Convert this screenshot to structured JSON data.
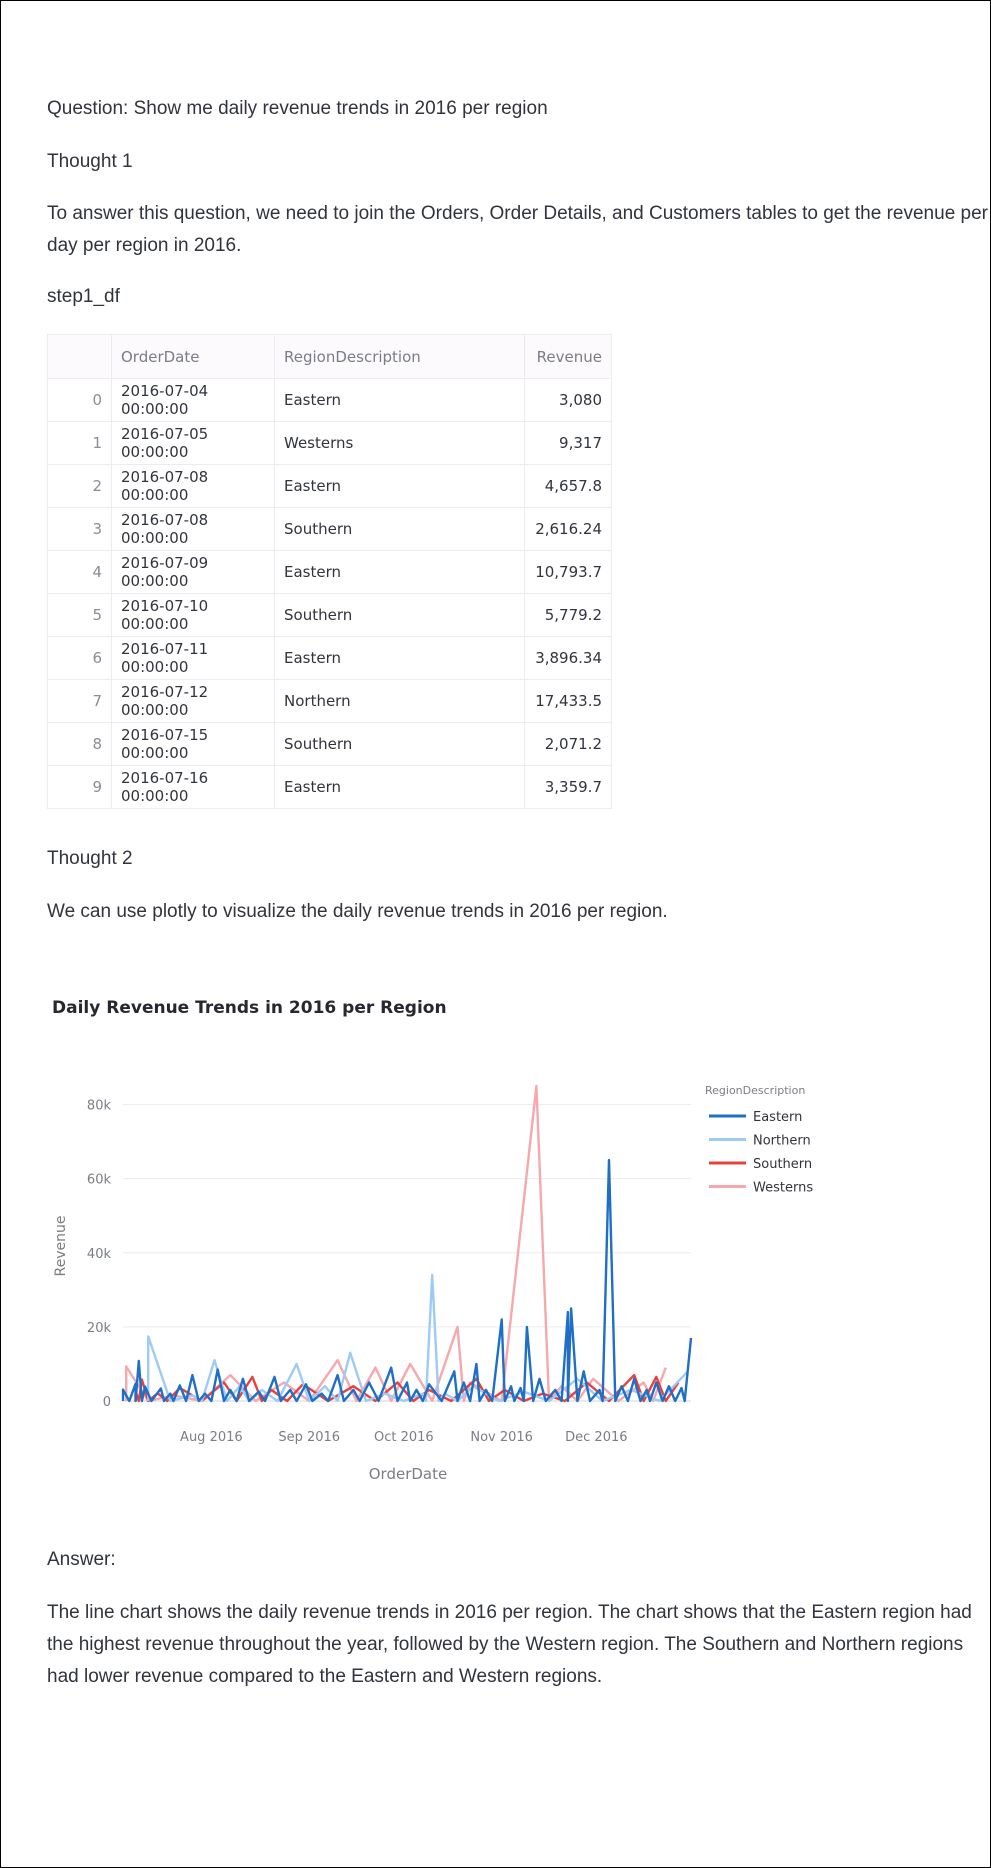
{
  "question": "Question: Show me daily revenue trends in 2016 per region",
  "thought1": {
    "title": "Thought 1",
    "text": "To answer this question, we need to join the Orders, Order Details, and Customers tables to get the revenue per day per region in 2016."
  },
  "dataframe": {
    "name": "step1_df",
    "columns": [
      "",
      "OrderDate",
      "RegionDescription",
      "Revenue"
    ],
    "rows": [
      {
        "idx": "0",
        "date": "2016-07-04 00:00:00",
        "region": "Eastern",
        "revenue": "3,080"
      },
      {
        "idx": "1",
        "date": "2016-07-05 00:00:00",
        "region": "Westerns",
        "revenue": "9,317"
      },
      {
        "idx": "2",
        "date": "2016-07-08 00:00:00",
        "region": "Eastern",
        "revenue": "4,657.8"
      },
      {
        "idx": "3",
        "date": "2016-07-08 00:00:00",
        "region": "Southern",
        "revenue": "2,616.24"
      },
      {
        "idx": "4",
        "date": "2016-07-09 00:00:00",
        "region": "Eastern",
        "revenue": "10,793.7"
      },
      {
        "idx": "5",
        "date": "2016-07-10 00:00:00",
        "region": "Southern",
        "revenue": "5,779.2"
      },
      {
        "idx": "6",
        "date": "2016-07-11 00:00:00",
        "region": "Eastern",
        "revenue": "3,896.34"
      },
      {
        "idx": "7",
        "date": "2016-07-12 00:00:00",
        "region": "Northern",
        "revenue": "17,433.5"
      },
      {
        "idx": "8",
        "date": "2016-07-15 00:00:00",
        "region": "Southern",
        "revenue": "2,071.2"
      },
      {
        "idx": "9",
        "date": "2016-07-16 00:00:00",
        "region": "Eastern",
        "revenue": "3,359.7"
      }
    ]
  },
  "thought2": {
    "title": "Thought 2",
    "text": "We can use plotly to visualize the daily revenue trends in 2016 per region."
  },
  "chart_data": {
    "type": "line",
    "title": "Daily Revenue Trends in 2016 per Region",
    "xlabel": "OrderDate",
    "ylabel": "Revenue",
    "xlim": [
      "2016-07-04",
      "2016-12-31"
    ],
    "ylim": [
      0,
      85000
    ],
    "x_ticks": [
      "Aug 2016",
      "Sep 2016",
      "Oct 2016",
      "Nov 2016",
      "Dec 2016"
    ],
    "y_ticks": [
      "0",
      "20k",
      "40k",
      "60k",
      "80k"
    ],
    "y_tick_values": [
      0,
      20000,
      40000,
      60000,
      80000
    ],
    "grid": true,
    "legend_title": "RegionDescription",
    "legend_position": "right",
    "series": [
      {
        "name": "Eastern",
        "color": "#1f6fc6",
        "points": [
          [
            "2016-07-04",
            3080
          ],
          [
            "2016-07-08",
            4658
          ],
          [
            "2016-07-09",
            10794
          ],
          [
            "2016-07-11",
            3896
          ],
          [
            "2016-07-16",
            3360
          ],
          [
            "2016-07-19",
            2000
          ],
          [
            "2016-07-22",
            4200
          ],
          [
            "2016-07-26",
            7000
          ],
          [
            "2016-07-30",
            2000
          ],
          [
            "2016-08-03",
            8500
          ],
          [
            "2016-08-07",
            3000
          ],
          [
            "2016-08-11",
            6000
          ],
          [
            "2016-08-16",
            2500
          ],
          [
            "2016-08-21",
            6500
          ],
          [
            "2016-08-26",
            3000
          ],
          [
            "2016-08-31",
            4500
          ],
          [
            "2016-09-05",
            2000
          ],
          [
            "2016-09-10",
            7000
          ],
          [
            "2016-09-15",
            3000
          ],
          [
            "2016-09-20",
            5000
          ],
          [
            "2016-09-27",
            9000
          ],
          [
            "2016-10-02",
            5000
          ],
          [
            "2016-10-05",
            3000
          ],
          [
            "2016-10-09",
            4500
          ],
          [
            "2016-10-17",
            8000
          ],
          [
            "2016-10-20",
            5000
          ],
          [
            "2016-10-24",
            10000
          ],
          [
            "2016-10-27",
            3000
          ],
          [
            "2016-11-01",
            22000
          ],
          [
            "2016-11-04",
            4000
          ],
          [
            "2016-11-07",
            3500
          ],
          [
            "2016-11-09",
            20000
          ],
          [
            "2016-11-13",
            6000
          ],
          [
            "2016-11-18",
            3000
          ],
          [
            "2016-11-22",
            24000
          ],
          [
            "2016-11-23",
            25000
          ],
          [
            "2016-11-27",
            8000
          ],
          [
            "2016-12-02",
            3000
          ],
          [
            "2016-12-05",
            65000
          ],
          [
            "2016-12-09",
            4000
          ],
          [
            "2016-12-13",
            6000
          ],
          [
            "2016-12-17",
            3000
          ],
          [
            "2016-12-20",
            5000
          ],
          [
            "2016-12-24",
            4000
          ],
          [
            "2016-12-28",
            3500
          ],
          [
            "2016-12-31",
            17000
          ]
        ]
      },
      {
        "name": "Northern",
        "color": "#9ecbf5",
        "points": [
          [
            "2016-07-12",
            17434
          ],
          [
            "2016-07-26",
            1500
          ],
          [
            "2016-08-02",
            11000
          ],
          [
            "2016-08-10",
            4000
          ],
          [
            "2016-08-17",
            3000
          ],
          [
            "2016-08-28",
            10000
          ],
          [
            "2016-09-06",
            4000
          ],
          [
            "2016-09-14",
            13000
          ],
          [
            "2016-09-25",
            2000
          ],
          [
            "2016-10-07",
            2000
          ],
          [
            "2016-10-10",
            34000
          ],
          [
            "2016-10-14",
            2000
          ],
          [
            "2016-10-23",
            4000
          ],
          [
            "2016-11-08",
            2500
          ],
          [
            "2016-11-25",
            6000
          ],
          [
            "2016-12-12",
            3000
          ],
          [
            "2016-12-30",
            8000
          ]
        ]
      },
      {
        "name": "Southern",
        "color": "#e8413c",
        "points": [
          [
            "2016-07-08",
            2616
          ],
          [
            "2016-07-10",
            5779
          ],
          [
            "2016-07-15",
            2071
          ],
          [
            "2016-07-22",
            3500
          ],
          [
            "2016-08-05",
            5000
          ],
          [
            "2016-08-14",
            6500
          ],
          [
            "2016-08-20",
            3000
          ],
          [
            "2016-08-30",
            4500
          ],
          [
            "2016-09-15",
            4000
          ],
          [
            "2016-09-29",
            5000
          ],
          [
            "2016-10-09",
            3000
          ],
          [
            "2016-10-24",
            6000
          ],
          [
            "2016-11-02",
            3000
          ],
          [
            "2016-11-14",
            2000
          ],
          [
            "2016-11-28",
            5000
          ],
          [
            "2016-12-13",
            7000
          ],
          [
            "2016-12-20",
            6500
          ],
          [
            "2016-12-27",
            5000
          ]
        ]
      },
      {
        "name": "Westerns",
        "color": "#f6a8ad",
        "points": [
          [
            "2016-07-05",
            9317
          ],
          [
            "2016-07-20",
            1500
          ],
          [
            "2016-08-07",
            7000
          ],
          [
            "2016-08-24",
            5000
          ],
          [
            "2016-09-10",
            11000
          ],
          [
            "2016-09-22",
            9000
          ],
          [
            "2016-10-03",
            10000
          ],
          [
            "2016-10-18",
            20000
          ],
          [
            "2016-10-22",
            5000
          ],
          [
            "2016-11-12",
            85000
          ],
          [
            "2016-11-20",
            4000
          ],
          [
            "2016-11-30",
            6000
          ],
          [
            "2016-12-16",
            5000
          ],
          [
            "2016-12-23",
            9000
          ]
        ]
      }
    ]
  },
  "answer": {
    "title": "Answer:",
    "text": "The line chart shows the daily revenue trends in 2016 per region. The chart shows that the Eastern region had the highest revenue throughout the year, followed by the Western region. The Southern and Northern regions had lower revenue compared to the Eastern and Western regions."
  }
}
